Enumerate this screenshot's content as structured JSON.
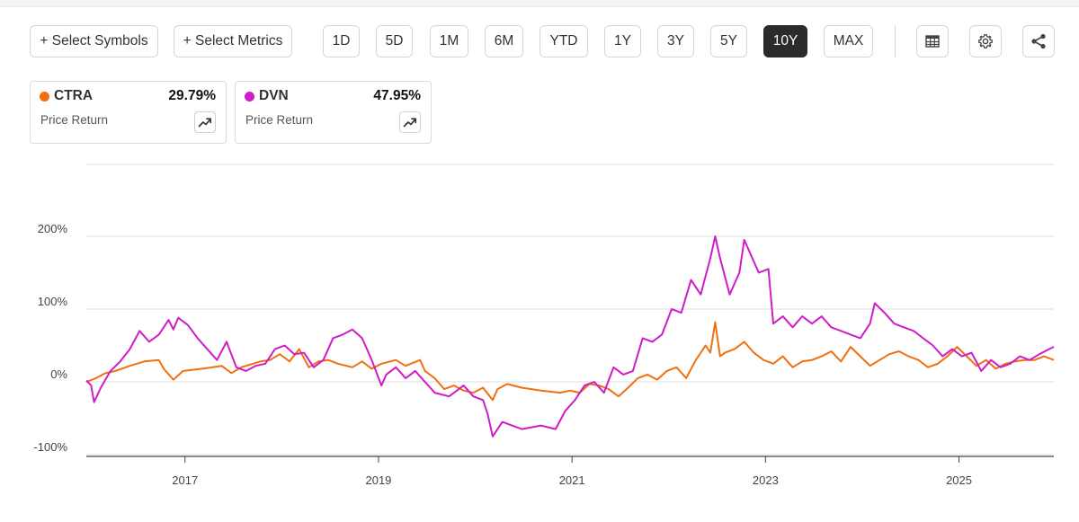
{
  "toolbar": {
    "select_symbols": "+ Select Symbols",
    "select_metrics": "+ Select Metrics",
    "ranges": [
      "1D",
      "5D",
      "1M",
      "6M",
      "YTD",
      "1Y",
      "3Y",
      "5Y",
      "10Y",
      "MAX"
    ],
    "active_range": "10Y"
  },
  "cards": [
    {
      "symbol": "CTRA",
      "value": "29.79%",
      "metric": "Price Return",
      "color": "#f07010"
    },
    {
      "symbol": "DVN",
      "value": "47.95%",
      "metric": "Price Return",
      "color": "#d01cc8"
    }
  ],
  "chart_data": {
    "type": "line",
    "x_ticks": [
      "2017",
      "2019",
      "2021",
      "2023",
      "2025"
    ],
    "y_ticks": [
      "-100%",
      "0%",
      "100%",
      "200%"
    ],
    "y_unit": "%",
    "xlim": [
      2016.0,
      2026.0
    ],
    "ylim": [
      -110,
      300
    ],
    "grid": true,
    "series": [
      {
        "name": "CTRA",
        "color": "#f07010",
        "points": [
          [
            2016.0,
            0
          ],
          [
            2016.1,
            5
          ],
          [
            2016.2,
            12
          ],
          [
            2016.3,
            15
          ],
          [
            2016.45,
            22
          ],
          [
            2016.6,
            28
          ],
          [
            2016.75,
            30
          ],
          [
            2016.8,
            18
          ],
          [
            2016.9,
            3
          ],
          [
            2017.0,
            15
          ],
          [
            2017.2,
            18
          ],
          [
            2017.4,
            22
          ],
          [
            2017.5,
            12
          ],
          [
            2017.6,
            20
          ],
          [
            2017.8,
            28
          ],
          [
            2017.9,
            30
          ],
          [
            2018.0,
            38
          ],
          [
            2018.1,
            28
          ],
          [
            2018.2,
            45
          ],
          [
            2018.3,
            20
          ],
          [
            2018.4,
            28
          ],
          [
            2018.5,
            30
          ],
          [
            2018.6,
            25
          ],
          [
            2018.75,
            20
          ],
          [
            2018.85,
            28
          ],
          [
            2018.95,
            18
          ],
          [
            2019.05,
            25
          ],
          [
            2019.2,
            30
          ],
          [
            2019.3,
            22
          ],
          [
            2019.45,
            30
          ],
          [
            2019.5,
            15
          ],
          [
            2019.6,
            5
          ],
          [
            2019.7,
            -10
          ],
          [
            2019.8,
            -5
          ],
          [
            2019.9,
            -12
          ],
          [
            2020.0,
            -15
          ],
          [
            2020.1,
            -8
          ],
          [
            2020.2,
            -25
          ],
          [
            2020.25,
            -10
          ],
          [
            2020.35,
            -3
          ],
          [
            2020.5,
            -8
          ],
          [
            2020.7,
            -12
          ],
          [
            2020.9,
            -15
          ],
          [
            2021.0,
            -12
          ],
          [
            2021.1,
            -15
          ],
          [
            2021.2,
            -3
          ],
          [
            2021.3,
            -5
          ],
          [
            2021.4,
            -10
          ],
          [
            2021.5,
            -20
          ],
          [
            2021.6,
            -8
          ],
          [
            2021.7,
            5
          ],
          [
            2021.8,
            10
          ],
          [
            2021.9,
            3
          ],
          [
            2022.0,
            15
          ],
          [
            2022.1,
            20
          ],
          [
            2022.2,
            5
          ],
          [
            2022.3,
            30
          ],
          [
            2022.4,
            50
          ],
          [
            2022.45,
            40
          ],
          [
            2022.5,
            82
          ],
          [
            2022.55,
            35
          ],
          [
            2022.6,
            40
          ],
          [
            2022.7,
            45
          ],
          [
            2022.8,
            55
          ],
          [
            2022.9,
            40
          ],
          [
            2023.0,
            30
          ],
          [
            2023.1,
            25
          ],
          [
            2023.2,
            35
          ],
          [
            2023.3,
            20
          ],
          [
            2023.4,
            28
          ],
          [
            2023.5,
            30
          ],
          [
            2023.6,
            35
          ],
          [
            2023.7,
            42
          ],
          [
            2023.8,
            28
          ],
          [
            2023.9,
            48
          ],
          [
            2024.0,
            35
          ],
          [
            2024.1,
            22
          ],
          [
            2024.2,
            30
          ],
          [
            2024.3,
            38
          ],
          [
            2024.4,
            42
          ],
          [
            2024.5,
            35
          ],
          [
            2024.6,
            30
          ],
          [
            2024.7,
            20
          ],
          [
            2024.8,
            25
          ],
          [
            2024.9,
            35
          ],
          [
            2025.0,
            48
          ],
          [
            2025.1,
            35
          ],
          [
            2025.2,
            22
          ],
          [
            2025.3,
            30
          ],
          [
            2025.4,
            18
          ],
          [
            2025.5,
            25
          ],
          [
            2025.6,
            28
          ],
          [
            2025.7,
            30
          ],
          [
            2025.8,
            30
          ],
          [
            2025.9,
            35
          ],
          [
            2026.0,
            30
          ]
        ]
      },
      {
        "name": "DVN",
        "color": "#d01cc8",
        "points": [
          [
            2016.0,
            2
          ],
          [
            2016.05,
            -5
          ],
          [
            2016.08,
            -28
          ],
          [
            2016.15,
            -8
          ],
          [
            2016.25,
            15
          ],
          [
            2016.35,
            28
          ],
          [
            2016.45,
            45
          ],
          [
            2016.55,
            70
          ],
          [
            2016.65,
            55
          ],
          [
            2016.75,
            65
          ],
          [
            2016.85,
            85
          ],
          [
            2016.9,
            72
          ],
          [
            2016.95,
            88
          ],
          [
            2017.05,
            78
          ],
          [
            2017.15,
            60
          ],
          [
            2017.25,
            45
          ],
          [
            2017.35,
            30
          ],
          [
            2017.45,
            55
          ],
          [
            2017.55,
            20
          ],
          [
            2017.65,
            15
          ],
          [
            2017.75,
            22
          ],
          [
            2017.85,
            25
          ],
          [
            2017.95,
            45
          ],
          [
            2018.05,
            50
          ],
          [
            2018.15,
            38
          ],
          [
            2018.25,
            40
          ],
          [
            2018.35,
            20
          ],
          [
            2018.45,
            30
          ],
          [
            2018.55,
            60
          ],
          [
            2018.65,
            65
          ],
          [
            2018.75,
            72
          ],
          [
            2018.85,
            60
          ],
          [
            2018.95,
            30
          ],
          [
            2019.05,
            -5
          ],
          [
            2019.1,
            10
          ],
          [
            2019.2,
            20
          ],
          [
            2019.3,
            5
          ],
          [
            2019.4,
            15
          ],
          [
            2019.5,
            0
          ],
          [
            2019.6,
            -15
          ],
          [
            2019.75,
            -20
          ],
          [
            2019.9,
            -5
          ],
          [
            2020.0,
            -20
          ],
          [
            2020.1,
            -25
          ],
          [
            2020.15,
            -45
          ],
          [
            2020.2,
            -75
          ],
          [
            2020.3,
            -55
          ],
          [
            2020.5,
            -65
          ],
          [
            2020.7,
            -60
          ],
          [
            2020.85,
            -65
          ],
          [
            2020.95,
            -40
          ],
          [
            2021.05,
            -25
          ],
          [
            2021.15,
            -5
          ],
          [
            2021.25,
            0
          ],
          [
            2021.35,
            -15
          ],
          [
            2021.45,
            20
          ],
          [
            2021.55,
            10
          ],
          [
            2021.65,
            15
          ],
          [
            2021.75,
            60
          ],
          [
            2021.85,
            55
          ],
          [
            2021.95,
            65
          ],
          [
            2022.05,
            100
          ],
          [
            2022.15,
            95
          ],
          [
            2022.25,
            140
          ],
          [
            2022.35,
            120
          ],
          [
            2022.45,
            170
          ],
          [
            2022.5,
            200
          ],
          [
            2022.55,
            170
          ],
          [
            2022.65,
            120
          ],
          [
            2022.75,
            150
          ],
          [
            2022.8,
            195
          ],
          [
            2022.85,
            180
          ],
          [
            2022.95,
            150
          ],
          [
            2023.05,
            155
          ],
          [
            2023.1,
            80
          ],
          [
            2023.2,
            90
          ],
          [
            2023.3,
            75
          ],
          [
            2023.4,
            90
          ],
          [
            2023.5,
            80
          ],
          [
            2023.6,
            90
          ],
          [
            2023.7,
            75
          ],
          [
            2023.8,
            70
          ],
          [
            2023.9,
            65
          ],
          [
            2024.0,
            60
          ],
          [
            2024.1,
            80
          ],
          [
            2024.15,
            108
          ],
          [
            2024.25,
            95
          ],
          [
            2024.35,
            80
          ],
          [
            2024.45,
            75
          ],
          [
            2024.55,
            70
          ],
          [
            2024.65,
            60
          ],
          [
            2024.75,
            50
          ],
          [
            2024.85,
            35
          ],
          [
            2024.95,
            45
          ],
          [
            2025.05,
            35
          ],
          [
            2025.15,
            40
          ],
          [
            2025.25,
            15
          ],
          [
            2025.35,
            30
          ],
          [
            2025.45,
            20
          ],
          [
            2025.55,
            25
          ],
          [
            2025.65,
            35
          ],
          [
            2025.75,
            30
          ],
          [
            2025.85,
            38
          ],
          [
            2025.95,
            45
          ],
          [
            2026.0,
            48
          ]
        ]
      }
    ]
  }
}
